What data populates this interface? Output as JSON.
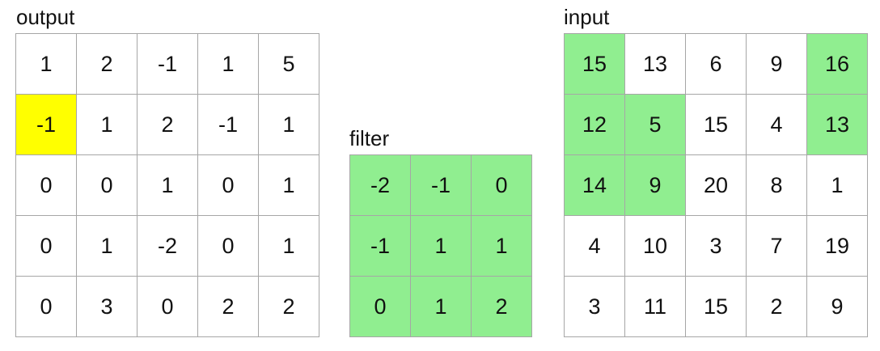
{
  "colors": {
    "green": "#90ee90",
    "yellow": "#ffff00",
    "white": "#ffffff",
    "border": "#a6a6a6"
  },
  "output": {
    "title": "output",
    "rows": [
      [
        "1",
        "2",
        "-1",
        "1",
        "5"
      ],
      [
        "-1",
        "1",
        "2",
        "-1",
        "1"
      ],
      [
        "0",
        "0",
        "1",
        "0",
        "1"
      ],
      [
        "0",
        "1",
        "-2",
        "0",
        "1"
      ],
      [
        "0",
        "3",
        "0",
        "2",
        "2"
      ]
    ],
    "highlight": [
      [
        0,
        0,
        0,
        0,
        0
      ],
      [
        1,
        0,
        0,
        0,
        0
      ],
      [
        0,
        0,
        0,
        0,
        0
      ],
      [
        0,
        0,
        0,
        0,
        0
      ],
      [
        0,
        0,
        0,
        0,
        0
      ]
    ],
    "highlight_color": "yellow"
  },
  "filter": {
    "title": "filter",
    "rows": [
      [
        "-2",
        "-1",
        "0"
      ],
      [
        "-1",
        "1",
        "1"
      ],
      [
        "0",
        "1",
        "2"
      ]
    ],
    "fill": "green"
  },
  "input": {
    "title": "input",
    "rows": [
      [
        "15",
        "13",
        "6",
        "9",
        "16"
      ],
      [
        "12",
        "5",
        "15",
        "4",
        "13"
      ],
      [
        "14",
        "9",
        "20",
        "8",
        "1"
      ],
      [
        "4",
        "10",
        "3",
        "7",
        "19"
      ],
      [
        "3",
        "11",
        "15",
        "2",
        "9"
      ]
    ],
    "highlight": [
      [
        1,
        0,
        0,
        0,
        1
      ],
      [
        1,
        1,
        0,
        0,
        1
      ],
      [
        1,
        1,
        0,
        0,
        0
      ],
      [
        0,
        0,
        0,
        0,
        0
      ],
      [
        0,
        0,
        0,
        0,
        0
      ]
    ],
    "highlight_color": "green"
  }
}
